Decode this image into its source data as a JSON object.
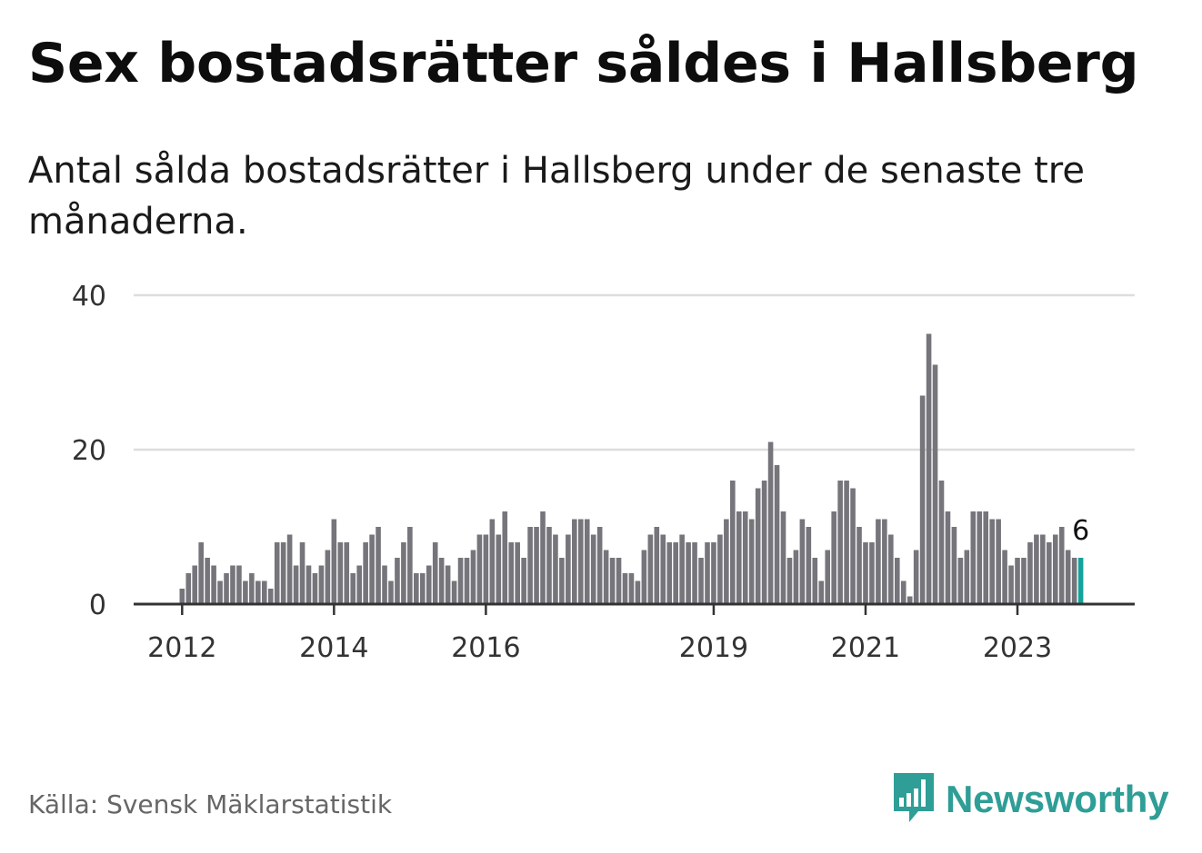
{
  "title": "Sex bostadsrätter såldes i Hallsberg",
  "subtitle": "Antal sålda bostadsrätter i Hallsberg under de senaste tre månaderna.",
  "source": "Källa: Svensk Mäklarstatistik",
  "brand": {
    "name": "Newsworthy",
    "icon": "newsworthy-logo-icon",
    "color": "#2e9e96"
  },
  "colors": {
    "bar": "#76757b",
    "highlight": "#14a39b",
    "grid": "#dddddd",
    "axis": "#333333"
  },
  "chart_data": {
    "type": "bar",
    "title": "",
    "xlabel": "",
    "ylabel": "",
    "ylim": [
      0,
      40
    ],
    "yticks": [
      0,
      20,
      40
    ],
    "grid": true,
    "x_start": "2012-01",
    "x_tick_labels": [
      {
        "label": "2012",
        "month_index": 0
      },
      {
        "label": "2014",
        "month_index": 24
      },
      {
        "label": "2016",
        "month_index": 48
      },
      {
        "label": "2019",
        "month_index": 84
      },
      {
        "label": "2021",
        "month_index": 108
      },
      {
        "label": "2023",
        "month_index": 132
      }
    ],
    "values": [
      2,
      4,
      5,
      8,
      6,
      5,
      3,
      4,
      5,
      5,
      3,
      4,
      3,
      3,
      2,
      8,
      8,
      9,
      5,
      8,
      5,
      4,
      5,
      7,
      11,
      8,
      8,
      4,
      5,
      8,
      9,
      10,
      5,
      3,
      6,
      8,
      10,
      4,
      4,
      5,
      8,
      6,
      5,
      3,
      6,
      6,
      7,
      9,
      9,
      11,
      9,
      12,
      8,
      8,
      6,
      10,
      10,
      12,
      10,
      9,
      6,
      9,
      11,
      11,
      11,
      9,
      10,
      7,
      6,
      6,
      4,
      4,
      3,
      7,
      9,
      10,
      9,
      8,
      8,
      9,
      8,
      8,
      6,
      8,
      8,
      9,
      11,
      16,
      12,
      12,
      11,
      15,
      16,
      21,
      18,
      12,
      6,
      7,
      11,
      10,
      6,
      3,
      7,
      12,
      16,
      16,
      15,
      10,
      8,
      8,
      11,
      11,
      9,
      6,
      3,
      1,
      7,
      27,
      35,
      31,
      16,
      12,
      10,
      6,
      7,
      12,
      12,
      12,
      11,
      11,
      7,
      5,
      6,
      6,
      8,
      9,
      9,
      8,
      9,
      10,
      7,
      6,
      6
    ],
    "highlight_last": true,
    "last_value_label": "6"
  }
}
